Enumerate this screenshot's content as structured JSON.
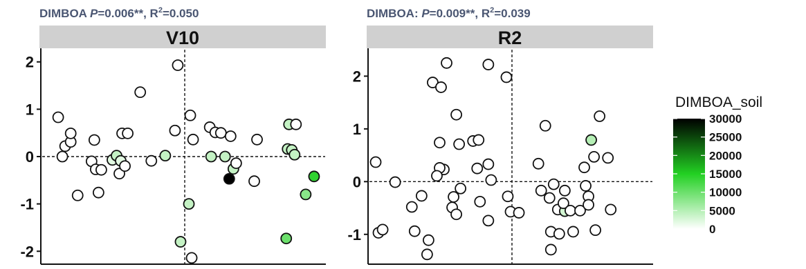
{
  "chart_data": [
    {
      "type": "scatter",
      "title_parts": {
        "prefix": "DIMBOA ",
        "p_label": "P",
        "p_value": "=0.006**, R",
        "r2_exp": "2",
        "r2_value": "=0.050"
      },
      "strip": "V10",
      "ylim": [
        -2.2,
        2.2
      ],
      "yticks": [
        -2,
        -1,
        0,
        1,
        2
      ],
      "ytick_labels": [
        "-2",
        "-1",
        "0",
        "1",
        "2"
      ],
      "x_ref": 0,
      "y_ref": 0,
      "xlim": [
        -1,
        1
      ],
      "points": [
        {
          "x": -0.91,
          "y": 0.83,
          "c": 0
        },
        {
          "x": -0.88,
          "y": 0.0,
          "c": 0
        },
        {
          "x": -0.86,
          "y": 0.22,
          "c": 0
        },
        {
          "x": -0.82,
          "y": 0.31,
          "c": 0
        },
        {
          "x": -0.82,
          "y": 0.49,
          "c": 0
        },
        {
          "x": -0.77,
          "y": -0.82,
          "c": 0
        },
        {
          "x": -0.65,
          "y": 0.35,
          "c": 0
        },
        {
          "x": -0.67,
          "y": -0.1,
          "c": 0
        },
        {
          "x": -0.64,
          "y": -0.27,
          "c": 0
        },
        {
          "x": -0.6,
          "y": -0.28,
          "c": 0
        },
        {
          "x": -0.62,
          "y": -0.76,
          "c": 0
        },
        {
          "x": -0.52,
          "y": -0.07,
          "c": 2000
        },
        {
          "x": -0.49,
          "y": 0.02,
          "c": 4000
        },
        {
          "x": -0.46,
          "y": -0.09,
          "c": 2000
        },
        {
          "x": -0.45,
          "y": 0.49,
          "c": 0
        },
        {
          "x": -0.47,
          "y": -0.36,
          "c": 0
        },
        {
          "x": -0.43,
          "y": -0.2,
          "c": 0
        },
        {
          "x": -0.41,
          "y": 0.49,
          "c": 0
        },
        {
          "x": -0.32,
          "y": 1.36,
          "c": 0
        },
        {
          "x": -0.24,
          "y": -0.09,
          "c": 0
        },
        {
          "x": -0.14,
          "y": 0.02,
          "c": 4000
        },
        {
          "x": -0.07,
          "y": 0.55,
          "c": 0
        },
        {
          "x": -0.05,
          "y": 1.93,
          "c": 0
        },
        {
          "x": -0.03,
          "y": -1.8,
          "c": 4000
        },
        {
          "x": 0.03,
          "y": -1.0,
          "c": 4000
        },
        {
          "x": 0.04,
          "y": 0.87,
          "c": 0
        },
        {
          "x": 0.06,
          "y": 0.36,
          "c": 0
        },
        {
          "x": 0.05,
          "y": -2.14,
          "c": 0
        },
        {
          "x": 0.18,
          "y": 0.62,
          "c": 0
        },
        {
          "x": 0.22,
          "y": 0.51,
          "c": 0
        },
        {
          "x": 0.19,
          "y": 0.0,
          "c": 4000
        },
        {
          "x": 0.26,
          "y": 0.5,
          "c": 0
        },
        {
          "x": 0.29,
          "y": 0.0,
          "c": 4000
        },
        {
          "x": 0.33,
          "y": 0.43,
          "c": 0
        },
        {
          "x": 0.35,
          "y": -0.26,
          "c": 4000
        },
        {
          "x": 0.37,
          "y": -0.14,
          "c": 0
        },
        {
          "x": 0.32,
          "y": -0.47,
          "c": 30000
        },
        {
          "x": 0.52,
          "y": 0.36,
          "c": 0
        },
        {
          "x": 0.5,
          "y": -0.52,
          "c": 0
        },
        {
          "x": 0.75,
          "y": 0.68,
          "c": 4000
        },
        {
          "x": 0.8,
          "y": 0.68,
          "c": 0
        },
        {
          "x": 0.74,
          "y": 0.16,
          "c": 4000
        },
        {
          "x": 0.77,
          "y": 0.14,
          "c": 4000
        },
        {
          "x": 0.79,
          "y": 0.04,
          "c": 4000
        },
        {
          "x": 0.73,
          "y": -1.73,
          "c": 10000
        },
        {
          "x": 0.87,
          "y": -0.8,
          "c": 8000
        },
        {
          "x": 0.93,
          "y": -0.42,
          "c": 14000
        }
      ]
    },
    {
      "type": "scatter",
      "title_parts": {
        "prefix": "DIMBOA: ",
        "p_label": "P",
        "p_value": "=0.009**, R",
        "r2_exp": "2",
        "r2_value": "=0.039"
      },
      "strip": "R2",
      "ylim": [
        -1.5,
        2.45
      ],
      "yticks": [
        -1,
        0,
        1,
        2
      ],
      "ytick_labels": [
        "-1",
        "0",
        "1",
        "2"
      ],
      "x_ref": 0,
      "y_ref": 0,
      "xlim": [
        -1,
        1
      ],
      "points": [
        {
          "x": -0.98,
          "y": 0.37,
          "c": 0
        },
        {
          "x": -0.96,
          "y": -0.97,
          "c": 0
        },
        {
          "x": -0.93,
          "y": -0.91,
          "c": 0
        },
        {
          "x": -0.84,
          "y": -0.01,
          "c": 0
        },
        {
          "x": -0.72,
          "y": -0.48,
          "c": 0
        },
        {
          "x": -0.7,
          "y": -0.94,
          "c": 0
        },
        {
          "x": -0.65,
          "y": -0.27,
          "c": 0
        },
        {
          "x": -0.61,
          "y": -1.38,
          "c": 0
        },
        {
          "x": -0.6,
          "y": -1.11,
          "c": 0
        },
        {
          "x": -0.57,
          "y": 1.88,
          "c": 0
        },
        {
          "x": -0.51,
          "y": 1.79,
          "c": 0
        },
        {
          "x": -0.52,
          "y": 0.74,
          "c": 0
        },
        {
          "x": -0.49,
          "y": 0.23,
          "c": 0
        },
        {
          "x": -0.52,
          "y": 0.26,
          "c": 0
        },
        {
          "x": -0.54,
          "y": 0.11,
          "c": 0
        },
        {
          "x": -0.47,
          "y": 2.25,
          "c": 0
        },
        {
          "x": -0.43,
          "y": -0.49,
          "c": 0
        },
        {
          "x": -0.42,
          "y": -0.29,
          "c": 0
        },
        {
          "x": -0.4,
          "y": 1.27,
          "c": 0
        },
        {
          "x": -0.38,
          "y": 0.71,
          "c": 0
        },
        {
          "x": -0.37,
          "y": -0.13,
          "c": 0
        },
        {
          "x": -0.4,
          "y": -0.62,
          "c": 0
        },
        {
          "x": -0.28,
          "y": 0.77,
          "c": 0
        },
        {
          "x": -0.25,
          "y": 0.25,
          "c": 0
        },
        {
          "x": -0.24,
          "y": 0.79,
          "c": 0
        },
        {
          "x": -0.23,
          "y": -0.38,
          "c": 0
        },
        {
          "x": -0.17,
          "y": 2.22,
          "c": 0
        },
        {
          "x": -0.17,
          "y": 0.33,
          "c": 0
        },
        {
          "x": -0.15,
          "y": 0.03,
          "c": 0
        },
        {
          "x": -0.17,
          "y": -0.74,
          "c": 0
        },
        {
          "x": -0.04,
          "y": 1.98,
          "c": 0
        },
        {
          "x": -0.03,
          "y": -0.28,
          "c": 0
        },
        {
          "x": -0.01,
          "y": -0.57,
          "c": 0
        },
        {
          "x": 0.05,
          "y": -0.59,
          "c": 0
        },
        {
          "x": 0.19,
          "y": 0.34,
          "c": 0
        },
        {
          "x": 0.21,
          "y": -0.17,
          "c": 0
        },
        {
          "x": 0.24,
          "y": 1.06,
          "c": 0
        },
        {
          "x": 0.27,
          "y": -0.31,
          "c": 0
        },
        {
          "x": 0.28,
          "y": -0.95,
          "c": 0
        },
        {
          "x": 0.28,
          "y": -1.29,
          "c": 0
        },
        {
          "x": 0.3,
          "y": -0.05,
          "c": 0
        },
        {
          "x": 0.33,
          "y": -0.53,
          "c": 0
        },
        {
          "x": 0.34,
          "y": -0.99,
          "c": 0
        },
        {
          "x": 0.38,
          "y": -0.17,
          "c": 0
        },
        {
          "x": 0.38,
          "y": -0.56,
          "c": 3000
        },
        {
          "x": 0.37,
          "y": -0.41,
          "c": 0
        },
        {
          "x": 0.42,
          "y": -0.55,
          "c": 0
        },
        {
          "x": 0.44,
          "y": -0.95,
          "c": 0
        },
        {
          "x": 0.49,
          "y": -0.55,
          "c": 0
        },
        {
          "x": 0.53,
          "y": -0.08,
          "c": 0
        },
        {
          "x": 0.52,
          "y": 0.27,
          "c": 0
        },
        {
          "x": 0.55,
          "y": -0.28,
          "c": 0
        },
        {
          "x": 0.55,
          "y": -0.44,
          "c": 0
        },
        {
          "x": 0.57,
          "y": 0.79,
          "c": 5000
        },
        {
          "x": 0.59,
          "y": 0.47,
          "c": 0
        },
        {
          "x": 0.6,
          "y": -0.92,
          "c": 0
        },
        {
          "x": 0.63,
          "y": 1.24,
          "c": 0
        },
        {
          "x": 0.69,
          "y": 0.45,
          "c": 0
        },
        {
          "x": 0.71,
          "y": -0.53,
          "c": 0
        }
      ]
    }
  ],
  "legend": {
    "title": "DIMBOA_soil",
    "labels": [
      "30000",
      "25000",
      "20000",
      "15000",
      "10000",
      "5000",
      "0"
    ],
    "min": 0,
    "max": 30000,
    "low_color": "#ffffff",
    "mid_color": "#22d022",
    "high_color": "#000000"
  }
}
